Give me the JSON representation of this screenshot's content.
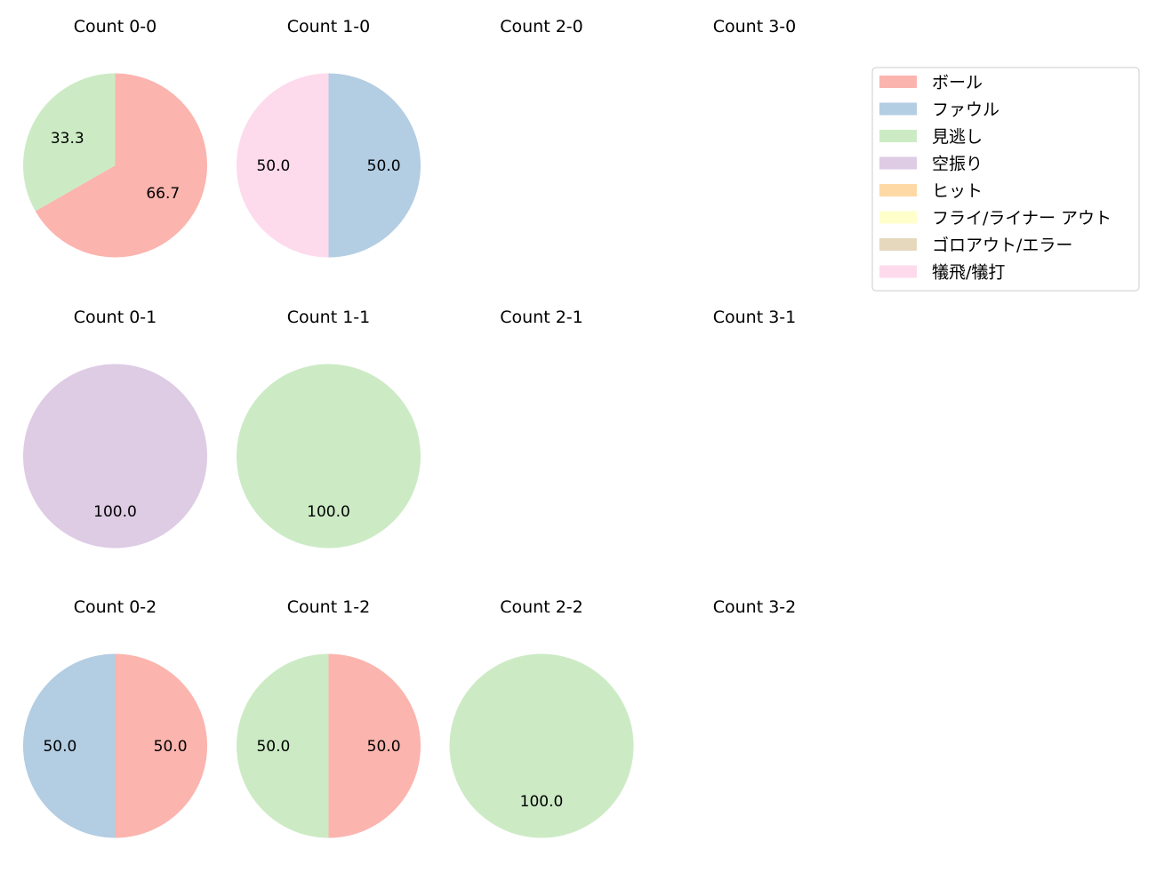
{
  "legend": {
    "entries": [
      {
        "label": "ボール",
        "color": "#fbb4ae"
      },
      {
        "label": "ファウル",
        "color": "#b3cde3"
      },
      {
        "label": "見逃し",
        "color": "#ccebc5"
      },
      {
        "label": "空振り",
        "color": "#decbe4"
      },
      {
        "label": "ヒット",
        "color": "#fed9a6"
      },
      {
        "label": "フライ/ライナー アウト",
        "color": "#ffffcc"
      },
      {
        "label": "ゴロアウト/エラー",
        "color": "#e5d8bd"
      },
      {
        "label": "犠飛/犠打",
        "color": "#fddaec"
      }
    ]
  },
  "chart_data": [
    {
      "type": "pie",
      "title": "Count 0-0",
      "slices": [
        {
          "category": "ボール",
          "value": 66.7,
          "label": "66.7"
        },
        {
          "category": "見逃し",
          "value": 33.3,
          "label": "33.3"
        }
      ]
    },
    {
      "type": "pie",
      "title": "Count 1-0",
      "slices": [
        {
          "category": "ファウル",
          "value": 50.0,
          "label": "50.0"
        },
        {
          "category": "犠飛/犠打",
          "value": 50.0,
          "label": "50.0"
        }
      ]
    },
    {
      "type": "pie",
      "title": "Count 2-0",
      "slices": []
    },
    {
      "type": "pie",
      "title": "Count 3-0",
      "slices": []
    },
    {
      "type": "pie",
      "title": "Count 0-1",
      "slices": [
        {
          "category": "空振り",
          "value": 100.0,
          "label": "100.0"
        }
      ]
    },
    {
      "type": "pie",
      "title": "Count 1-1",
      "slices": [
        {
          "category": "見逃し",
          "value": 100.0,
          "label": "100.0"
        }
      ]
    },
    {
      "type": "pie",
      "title": "Count 2-1",
      "slices": []
    },
    {
      "type": "pie",
      "title": "Count 3-1",
      "slices": []
    },
    {
      "type": "pie",
      "title": "Count 0-2",
      "slices": [
        {
          "category": "ボール",
          "value": 50.0,
          "label": "50.0"
        },
        {
          "category": "ファウル",
          "value": 50.0,
          "label": "50.0"
        }
      ]
    },
    {
      "type": "pie",
      "title": "Count 1-2",
      "slices": [
        {
          "category": "ボール",
          "value": 50.0,
          "label": "50.0"
        },
        {
          "category": "見逃し",
          "value": 50.0,
          "label": "50.0"
        }
      ]
    },
    {
      "type": "pie",
      "title": "Count 2-2",
      "slices": [
        {
          "category": "見逃し",
          "value": 100.0,
          "label": "100.0"
        }
      ]
    },
    {
      "type": "pie",
      "title": "Count 3-2",
      "slices": []
    }
  ]
}
